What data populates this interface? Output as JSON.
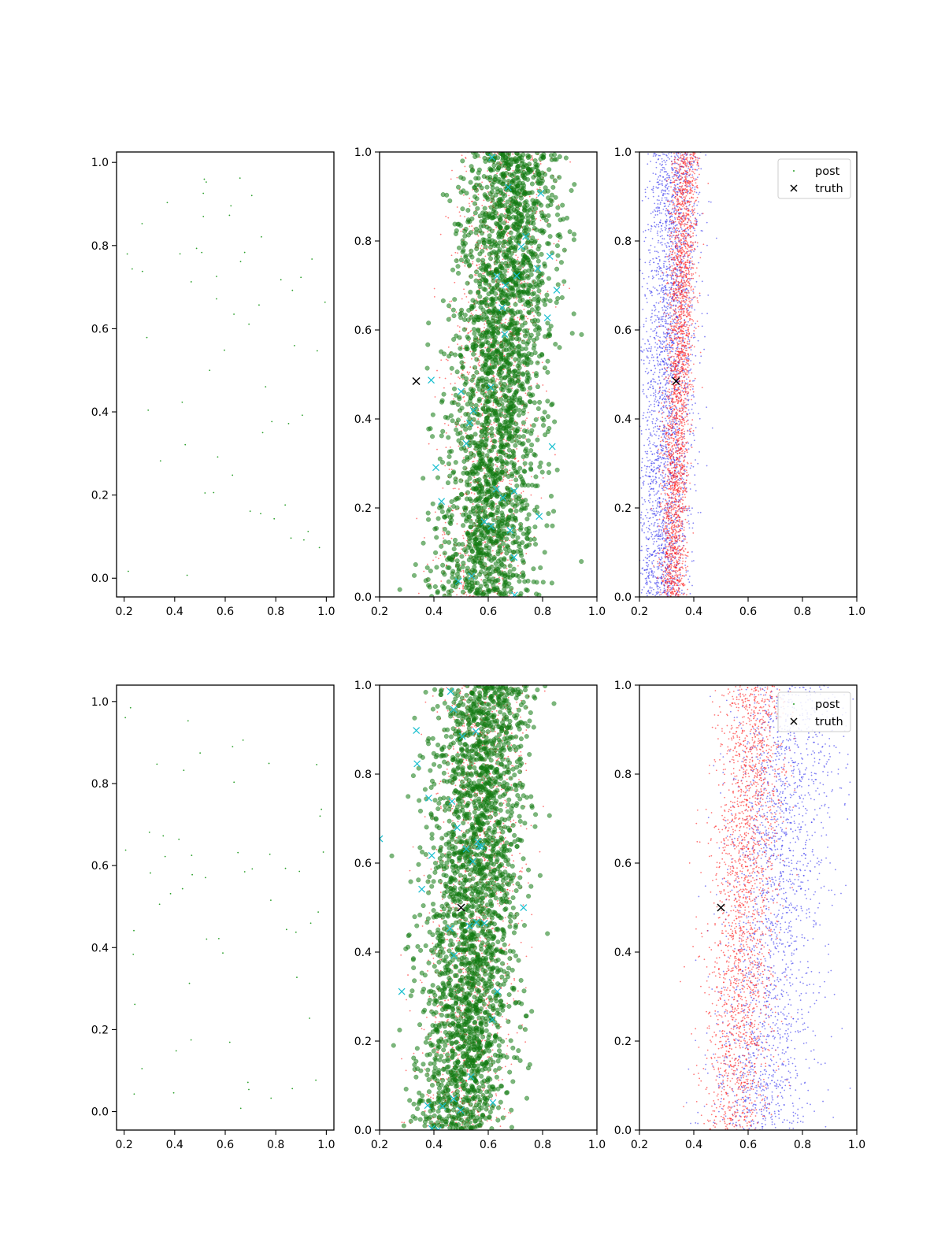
{
  "figure": {
    "background": "#ffffff"
  },
  "colors": {
    "green_small": "#2ca02c",
    "green_large": "#117a11",
    "red_points": "#ff2020",
    "blue_points": "#3333ee",
    "cyan_marker": "#17bfcf",
    "truth_marker": "#000000"
  },
  "chart_data": [
    {
      "id": "r1c1",
      "type": "scatter",
      "xlim": [
        0.17,
        1.03
      ],
      "ylim": [
        -0.045,
        1.025
      ],
      "xticks": [
        "0.2",
        "0.4",
        "0.6",
        "0.8",
        "1.0"
      ],
      "xtick_values": [
        0.2,
        0.4,
        0.6,
        0.8,
        1.0
      ],
      "yticks": [
        "0.0",
        "0.2",
        "0.4",
        "0.6",
        "0.8",
        "1.0"
      ],
      "ytick_values": [
        0.0,
        0.2,
        0.4,
        0.6,
        0.8,
        1.0
      ],
      "series": [
        {
          "style": "green_small",
          "count": 58,
          "x_range": [
            0.2,
            1.0
          ],
          "y_range": [
            0.0,
            1.0
          ]
        }
      ],
      "truth": null
    },
    {
      "id": "r1c2",
      "type": "scatter",
      "xlim": [
        0.2,
        1.0
      ],
      "ylim": [
        0.0,
        1.0
      ],
      "xticks": [
        "0.2",
        "0.4",
        "0.6",
        "0.8",
        "1.0"
      ],
      "xtick_values": [
        0.2,
        0.4,
        0.6,
        0.8,
        1.0
      ],
      "yticks": [
        "0.0",
        "0.2",
        "0.4",
        "0.6",
        "0.8",
        "1.0"
      ],
      "ytick_values": [
        0.0,
        0.2,
        0.4,
        0.6,
        0.8,
        1.0
      ],
      "series": [
        {
          "style": "red_points",
          "count": 1500,
          "center_bottom": 0.56,
          "center_top": 0.68,
          "spread": 0.085
        },
        {
          "style": "green_large",
          "count": 2400,
          "center_bottom": 0.58,
          "center_top": 0.7,
          "spread": 0.09
        },
        {
          "style": "cyan_marker",
          "count": 34,
          "center_bottom": 0.58,
          "center_top": 0.68,
          "spread": 0.11
        }
      ],
      "truth": {
        "x": 0.335,
        "y": 0.485
      }
    },
    {
      "id": "r1c3",
      "type": "scatter",
      "xlim": [
        0.2,
        1.0
      ],
      "ylim": [
        0.0,
        1.0
      ],
      "xticks": [
        "0.2",
        "0.4",
        "0.6",
        "0.8",
        "1.0"
      ],
      "xtick_values": [
        0.2,
        0.4,
        0.6,
        0.8,
        1.0
      ],
      "yticks": [
        "0.0",
        "0.2",
        "0.4",
        "0.6",
        "0.8",
        "1.0"
      ],
      "ytick_values": [
        0.0,
        0.2,
        0.4,
        0.6,
        0.8,
        1.0
      ],
      "series": [
        {
          "style": "blue_points",
          "count": 2600,
          "center_bottom": 0.28,
          "center_top": 0.33,
          "spread": 0.05
        },
        {
          "style": "red_points",
          "count": 2600,
          "center_bottom": 0.32,
          "center_top": 0.37,
          "spread": 0.025
        }
      ],
      "truth": {
        "x": 0.335,
        "y": 0.485
      },
      "legend": {
        "placement": "upper-right",
        "entries": [
          "post",
          "truth"
        ]
      }
    },
    {
      "id": "r2c1",
      "type": "scatter",
      "xlim": [
        0.17,
        1.03
      ],
      "ylim": [
        -0.045,
        1.04
      ],
      "xticks": [
        "0.2",
        "0.4",
        "0.6",
        "0.8",
        "1.0"
      ],
      "xtick_values": [
        0.2,
        0.4,
        0.6,
        0.8,
        1.0
      ],
      "yticks": [
        "0.0",
        "0.2",
        "0.4",
        "0.6",
        "0.8",
        "1.0"
      ],
      "ytick_values": [
        0.0,
        0.2,
        0.4,
        0.6,
        0.8,
        1.0
      ],
      "series": [
        {
          "style": "green_small",
          "count": 58,
          "x_range": [
            0.2,
            1.0
          ],
          "y_range": [
            0.0,
            1.0
          ]
        }
      ],
      "truth": null
    },
    {
      "id": "r2c2",
      "type": "scatter",
      "xlim": [
        0.2,
        1.0
      ],
      "ylim": [
        0.0,
        1.0
      ],
      "xticks": [
        "0.2",
        "0.4",
        "0.6",
        "0.8",
        "1.0"
      ],
      "xtick_values": [
        0.2,
        0.4,
        0.6,
        0.8,
        1.0
      ],
      "yticks": [
        "0.0",
        "0.2",
        "0.4",
        "0.6",
        "0.8",
        "1.0"
      ],
      "ytick_values": [
        0.0,
        0.2,
        0.4,
        0.6,
        0.8,
        1.0
      ],
      "series": [
        {
          "style": "red_points",
          "count": 1500,
          "center_bottom": 0.5,
          "center_top": 0.6,
          "spread": 0.08
        },
        {
          "style": "green_large",
          "count": 2400,
          "center_bottom": 0.5,
          "center_top": 0.59,
          "spread": 0.085
        },
        {
          "style": "cyan_marker",
          "count": 34,
          "center_bottom": 0.46,
          "center_top": 0.5,
          "spread": 0.1
        }
      ],
      "truth": {
        "x": 0.5,
        "y": 0.5
      }
    },
    {
      "id": "r2c3",
      "type": "scatter",
      "xlim": [
        0.2,
        1.0
      ],
      "ylim": [
        0.0,
        1.0
      ],
      "xticks": [
        "0.2",
        "0.4",
        "0.6",
        "0.8",
        "1.0"
      ],
      "xtick_values": [
        0.2,
        0.4,
        0.6,
        0.8,
        1.0
      ],
      "yticks": [
        "0.0",
        "0.2",
        "0.4",
        "0.6",
        "0.8",
        "1.0"
      ],
      "ytick_values": [
        0.0,
        0.2,
        0.4,
        0.6,
        0.8,
        1.0
      ],
      "series": [
        {
          "style": "blue_points",
          "count": 2000,
          "center_bottom": 0.64,
          "center_top": 0.76,
          "spread": 0.095
        },
        {
          "style": "red_points",
          "count": 2200,
          "center_bottom": 0.55,
          "center_top": 0.62,
          "spread": 0.06
        }
      ],
      "truth": {
        "x": 0.5,
        "y": 0.5
      },
      "legend": {
        "placement": "upper-right",
        "entries": [
          "post",
          "truth"
        ]
      }
    }
  ]
}
